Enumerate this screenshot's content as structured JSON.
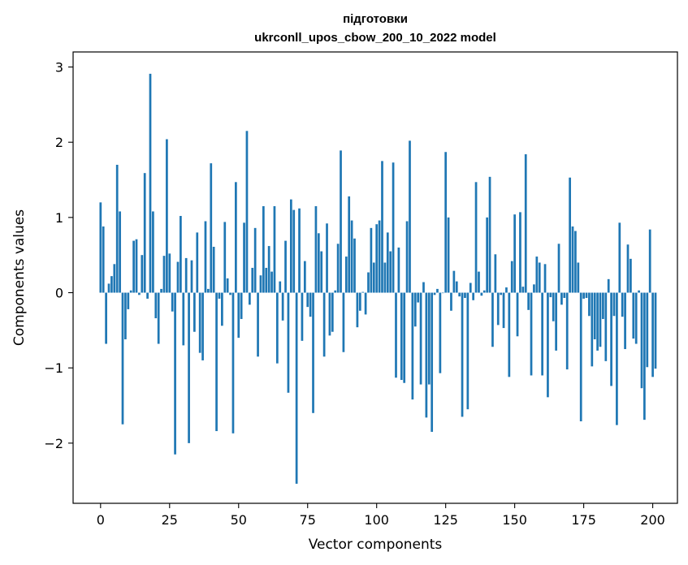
{
  "chart_data": {
    "type": "bar",
    "title_line1": "підготовки",
    "title_line2": "ukrconll_upos_cbow_200_10_2022 model",
    "xlabel": "Vector components",
    "ylabel": "Components values",
    "xlim": [
      -9.95,
      208.95
    ],
    "ylim": [
      -2.8,
      3.2
    ],
    "xticks": [
      0,
      25,
      50,
      75,
      100,
      125,
      150,
      175,
      200
    ],
    "xtick_labels": [
      "0",
      "25",
      "50",
      "75",
      "100",
      "125",
      "150",
      "175",
      "200"
    ],
    "yticks": [
      -2,
      -1,
      0,
      1,
      2,
      3
    ],
    "ytick_labels": [
      "−2",
      "−1",
      "0",
      "1",
      "2",
      "3"
    ],
    "grid": false,
    "bar_color": "#1f77b4",
    "values": [
      1.2,
      0.88,
      -0.68,
      0.12,
      0.22,
      0.38,
      1.7,
      1.08,
      -1.75,
      -0.62,
      -0.22,
      0.03,
      0.69,
      0.71,
      -0.03,
      0.5,
      1.59,
      -0.08,
      2.91,
      1.08,
      -0.34,
      -0.68,
      0.05,
      0.49,
      2.04,
      0.52,
      -0.25,
      -2.15,
      0.41,
      1.02,
      -0.7,
      0.46,
      -2.0,
      0.43,
      -0.52,
      0.8,
      -0.8,
      -0.9,
      0.95,
      0.05,
      1.72,
      0.61,
      -1.84,
      -0.08,
      -0.44,
      0.94,
      0.19,
      -0.03,
      -1.87,
      1.47,
      -0.6,
      -0.35,
      0.93,
      2.15,
      -0.16,
      0.33,
      0.86,
      -0.85,
      0.23,
      1.15,
      0.33,
      0.62,
      0.28,
      1.15,
      -0.94,
      0.15,
      -0.37,
      0.69,
      -1.33,
      1.24,
      1.1,
      -2.54,
      1.12,
      -0.64,
      0.42,
      -0.19,
      -0.32,
      -1.6,
      1.15,
      0.79,
      0.55,
      -0.85,
      0.92,
      -0.57,
      -0.52,
      0.03,
      0.65,
      1.89,
      -0.79,
      0.48,
      1.28,
      0.96,
      0.72,
      -0.46,
      -0.24,
      0.01,
      -0.29,
      0.27,
      0.86,
      0.4,
      0.91,
      0.96,
      1.75,
      0.4,
      0.8,
      0.55,
      1.73,
      -1.13,
      0.6,
      -1.16,
      -1.2,
      0.95,
      2.02,
      -1.42,
      -0.45,
      -0.13,
      -1.22,
      0.14,
      -1.66,
      -1.22,
      -1.85,
      -0.03,
      0.05,
      -1.07,
      0.0,
      1.87,
      1.0,
      -0.24,
      0.29,
      0.15,
      -0.05,
      -1.65,
      -0.07,
      -1.55,
      0.13,
      -0.1,
      1.47,
      0.28,
      -0.04,
      0.03,
      1.0,
      1.54,
      -0.72,
      0.51,
      -0.43,
      -0.03,
      -0.47,
      0.07,
      -1.12,
      0.42,
      1.04,
      -0.58,
      1.07,
      0.08,
      1.84,
      -0.23,
      -1.1,
      0.11,
      0.48,
      0.4,
      -1.1,
      0.38,
      -1.39,
      -0.06,
      -0.38,
      -0.77,
      0.65,
      -0.16,
      -0.07,
      -1.02,
      1.53,
      0.88,
      0.82,
      0.4,
      -1.71,
      -0.08,
      -0.07,
      -0.31,
      -0.98,
      -0.62,
      -0.77,
      -0.72,
      -0.35,
      -0.91,
      0.18,
      -1.24,
      -0.31,
      -1.76,
      0.93,
      -0.32,
      -0.75,
      0.64,
      0.45,
      -0.61,
      -0.68,
      0.03,
      -1.27,
      -1.69,
      -0.99,
      0.84,
      -1.12,
      -1.01
    ]
  }
}
